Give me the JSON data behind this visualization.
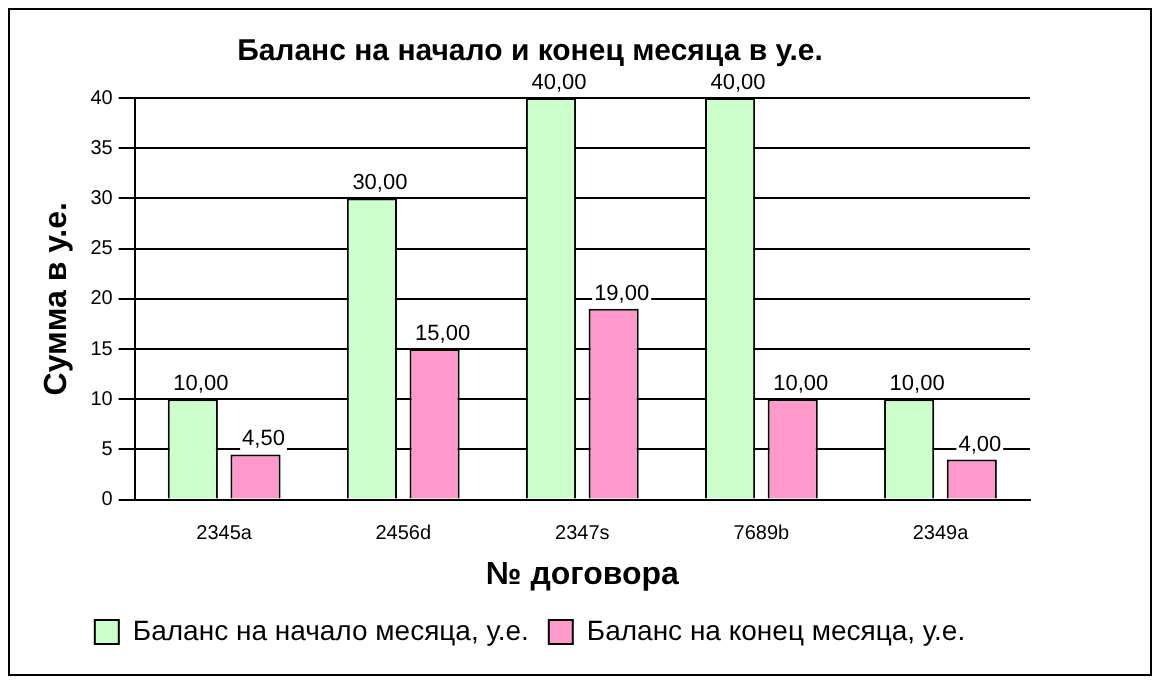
{
  "chart_data": {
    "type": "bar",
    "title": "Баланс на начало и конец месяца в у.е.",
    "xlabel": "№ договора",
    "ylabel": "Сумма в у.е.",
    "categories": [
      "2345a",
      "2456d",
      "2347s",
      "7689b",
      "2349a"
    ],
    "series": [
      {
        "name": "Баланс на начало месяца, у.е.",
        "color": "#ccffcc",
        "values": [
          10,
          30,
          40,
          40,
          10
        ],
        "value_labels": [
          "10,00",
          "30,00",
          "40,00",
          "40,00",
          "10,00"
        ]
      },
      {
        "name": "Баланс на конец месяца, у.е.",
        "color": "#ff99cc",
        "values": [
          4.5,
          15,
          19,
          10,
          4
        ],
        "value_labels": [
          "4,50",
          "15,00",
          "19,00",
          "10,00",
          "4,00"
        ]
      }
    ],
    "ylim": [
      0,
      40
    ],
    "yticks": [
      0,
      5,
      10,
      15,
      20,
      25,
      30,
      35,
      40
    ],
    "grid": "y",
    "legend": "bottom"
  }
}
